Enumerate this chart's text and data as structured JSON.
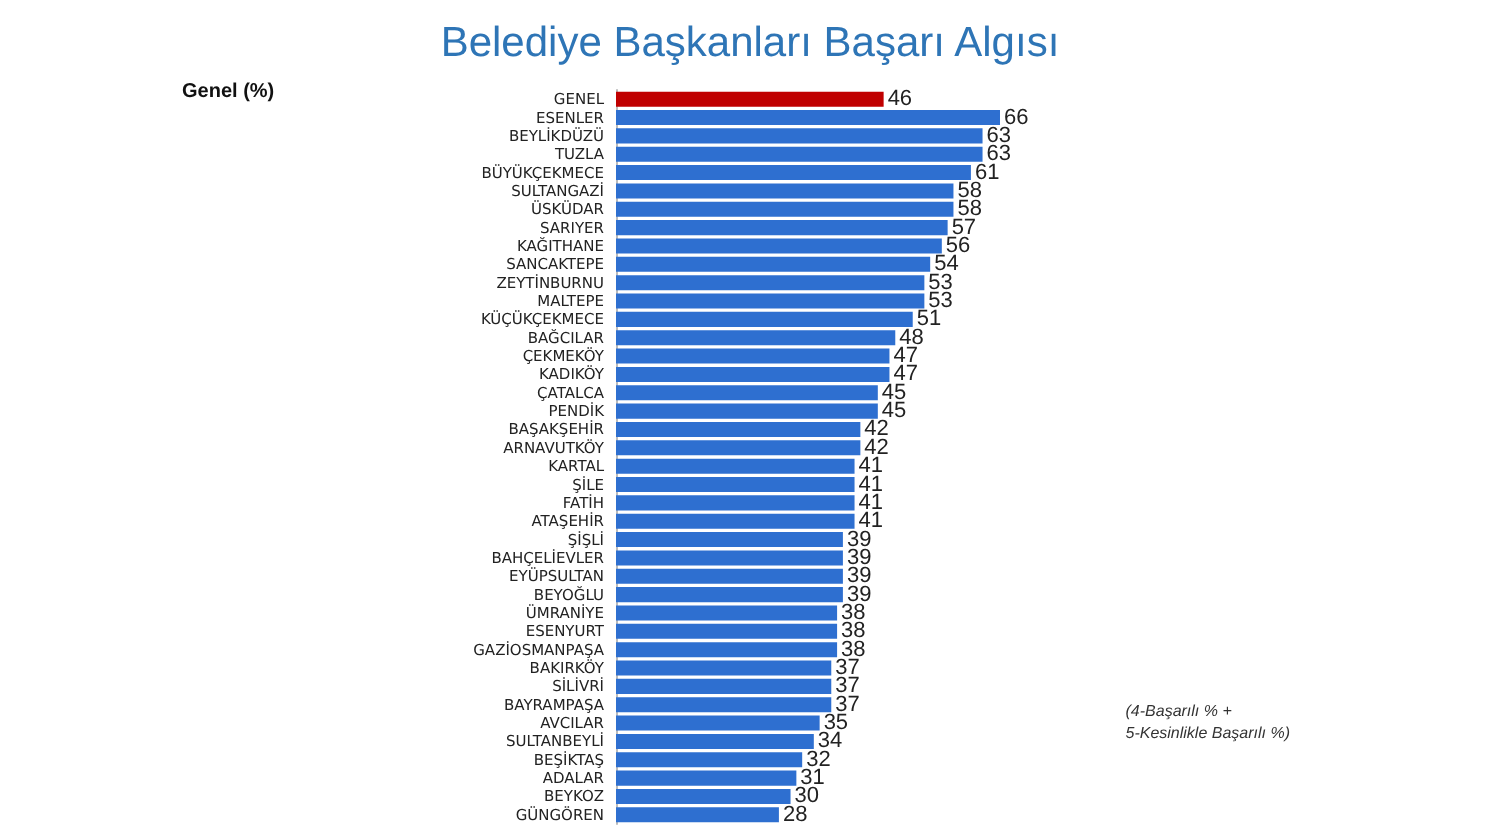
{
  "chart_data": {
    "type": "bar",
    "orientation": "horizontal",
    "title": "Belediye Başkanları Başarı Algısı",
    "subtitle": "Genel (%)",
    "categories": [
      "GENEL",
      "ESENLER",
      "BEYLİKDÜZÜ",
      "TUZLA",
      "BÜYÜKÇEKMECE",
      "SULTANGAZİ",
      "ÜSKÜDAR",
      "SARIYER",
      "KAĞITHANE",
      "SANCAKTEPE",
      "ZEYTİNBURNU",
      "MALTEPE",
      "KÜÇÜKÇEKMECE",
      "BAĞCILAR",
      "ÇEKMEKÖY",
      "KADIKÖY",
      "ÇATALCA",
      "PENDİK",
      "BAŞAKŞEHİR",
      "ARNAVUTKÖY",
      "KARTAL",
      "ŞİLE",
      "FATİH",
      "ATAŞEHİR",
      "ŞİŞLİ",
      "BAHÇELİEVLER",
      "EYÜPSULTAN",
      "BEYOĞLU",
      "ÜMRANİYE",
      "ESENYURT",
      "GAZİOSMANPAŞA",
      "BAKIRKÖY",
      "SİLİVRİ",
      "BAYRAMPAŞA",
      "AVCILAR",
      "SULTANBEYLİ",
      "BEŞİKTAŞ",
      "ADALAR",
      "BEYKOZ",
      "GÜNGÖREN"
    ],
    "values": [
      46,
      66,
      63,
      63,
      61,
      58,
      58,
      57,
      56,
      54,
      53,
      53,
      51,
      48,
      47,
      47,
      45,
      45,
      42,
      42,
      41,
      41,
      41,
      41,
      39,
      39,
      39,
      39,
      38,
      38,
      38,
      37,
      37,
      37,
      35,
      34,
      32,
      31,
      30,
      28
    ],
    "colors": [
      "#c00000",
      "#2e6fd0",
      "#2e6fd0",
      "#2e6fd0",
      "#2e6fd0",
      "#2e6fd0",
      "#2e6fd0",
      "#2e6fd0",
      "#2e6fd0",
      "#2e6fd0",
      "#2e6fd0",
      "#2e6fd0",
      "#2e6fd0",
      "#2e6fd0",
      "#2e6fd0",
      "#2e6fd0",
      "#2e6fd0",
      "#2e6fd0",
      "#2e6fd0",
      "#2e6fd0",
      "#2e6fd0",
      "#2e6fd0",
      "#2e6fd0",
      "#2e6fd0",
      "#2e6fd0",
      "#2e6fd0",
      "#2e6fd0",
      "#2e6fd0",
      "#2e6fd0",
      "#2e6fd0",
      "#2e6fd0",
      "#2e6fd0",
      "#2e6fd0",
      "#2e6fd0",
      "#2e6fd0",
      "#2e6fd0",
      "#2e6fd0",
      "#2e6fd0",
      "#2e6fd0",
      "#2e6fd0"
    ],
    "data_labels": true,
    "tick_labels": "y",
    "grid": false,
    "annotations": [
      "(4-Başarılı % +\n5-Kesinlikle Başarılı %)"
    ]
  }
}
